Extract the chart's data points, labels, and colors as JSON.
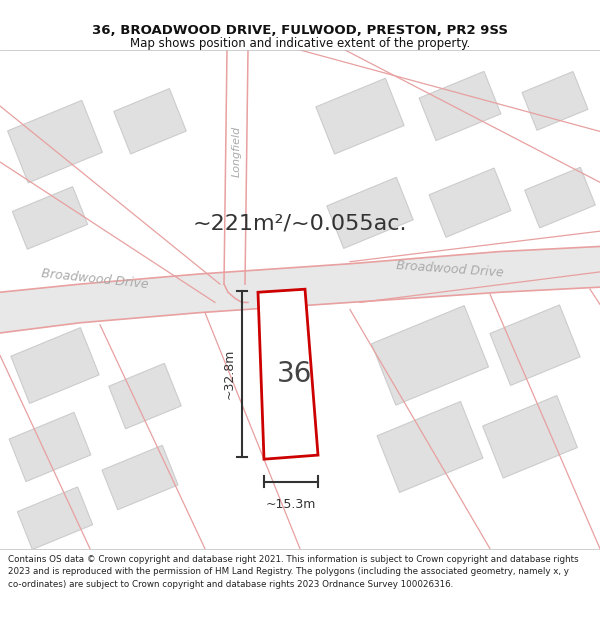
{
  "title_line1": "36, BROADWOOD DRIVE, FULWOOD, PRESTON, PR2 9SS",
  "title_line2": "Map shows position and indicative extent of the property.",
  "area_text": "~221m²/~0.055ac.",
  "property_number": "36",
  "dim_height": "~32.8m",
  "dim_width": "~15.3m",
  "street_left": "Broadwood Drive",
  "street_right": "Broadwood Drive",
  "street_vert": "Longfield",
  "copyright_text": "Contains OS data © Crown copyright and database right 2021. This information is subject to Crown copyright and database rights 2023 and is reproduced with the permission of HM Land Registry. The polygons (including the associated geometry, namely x, y co-ordinates) are subject to Crown copyright and database rights 2023 Ordnance Survey 100026316.",
  "bg_color": "#ffffff",
  "map_bg": "#f0f0f0",
  "road_line_color": "#e8a0a0",
  "property_edge": "#cc0000",
  "block_fill": "#e0e0e0",
  "block_edge": "#cccccc",
  "dim_line_color": "#333333",
  "title_color": "#111111",
  "street_color": "#aaaaaa",
  "area_color": "#333333",
  "fig_width": 6.0,
  "fig_height": 6.25
}
